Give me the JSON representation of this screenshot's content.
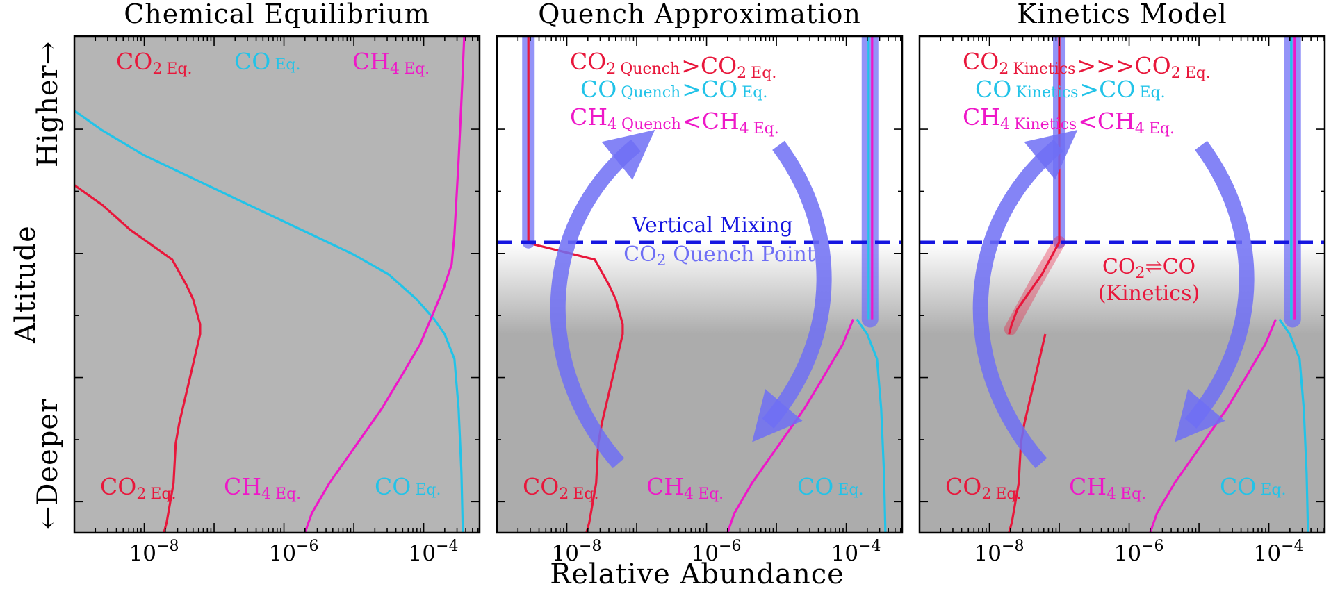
{
  "figure": {
    "xlabel": "Relative Abundance",
    "ylabel": "Altitude",
    "y_higher": "Higher→",
    "y_deeper": "←Deeper",
    "x_ticks": [
      {
        "exp": -8,
        "base": "10",
        "sup": "−8"
      },
      {
        "exp": -6,
        "base": "10",
        "sup": "−6"
      },
      {
        "exp": -4,
        "base": "10",
        "sup": "−4"
      }
    ],
    "xlim_log10": [
      -9.0,
      -3.2
    ]
  },
  "colors": {
    "co2": "#e8173b",
    "co": "#22c3e8",
    "ch4": "#ee18c8",
    "arrow": "#6f6ff5",
    "mixing_line": "#1515e0",
    "eq_background": "#b5b5b5",
    "deep_background": "#acacac"
  },
  "panels": [
    {
      "id": "equilibrium",
      "title": "Chemical Equilibrium",
      "top_labels": [
        {
          "species": "co2",
          "main": "CO",
          "sub2": "2",
          "tag": "Eq."
        },
        {
          "species": "co",
          "main": "CO",
          "sub2": "",
          "tag": "Eq."
        },
        {
          "species": "ch4",
          "main": "CH",
          "sub2": "4",
          "tag": "Eq."
        }
      ],
      "bottom_labels": [
        {
          "species": "co2",
          "main": "CO",
          "sub2": "2",
          "tag": "Eq."
        },
        {
          "species": "ch4",
          "main": "CH",
          "sub2": "4",
          "tag": "Eq."
        },
        {
          "species": "co",
          "main": "CO",
          "sub2": "",
          "tag": "Eq."
        }
      ]
    },
    {
      "id": "quench",
      "title": "Quench Approximation",
      "comparisons": [
        {
          "species": "co2",
          "main": "CO",
          "sub2": "2",
          "tag": "Quench",
          "op": ">",
          "rmain": "CO",
          "rsub2": "2",
          "rtag": "Eq."
        },
        {
          "species": "co",
          "main": "CO",
          "sub2": "",
          "tag": "Quench",
          "op": ">",
          "rmain": "CO",
          "rsub2": "",
          "rtag": "Eq."
        },
        {
          "species": "ch4",
          "main": "CH",
          "sub2": "4",
          "tag": "Quench",
          "op": "<",
          "rmain": "CH",
          "rsub2": "4",
          "rtag": "Eq."
        }
      ],
      "mixing_label": "Vertical Mixing",
      "quench_point_label_main": "CO",
      "quench_point_label_sub": "2",
      "quench_point_label_rest": " Quench Point",
      "bottom_labels": [
        {
          "species": "co2",
          "main": "CO",
          "sub2": "2",
          "tag": "Eq."
        },
        {
          "species": "ch4",
          "main": "CH",
          "sub2": "4",
          "tag": "Eq."
        },
        {
          "species": "co",
          "main": "CO",
          "sub2": "",
          "tag": "Eq."
        }
      ]
    },
    {
      "id": "kinetics",
      "title": "Kinetics Model",
      "comparisons": [
        {
          "species": "co2",
          "main": "CO",
          "sub2": "2",
          "tag": "Kinetics",
          "op": ">>>",
          "rmain": "CO",
          "rsub2": "2",
          "rtag": "Eq."
        },
        {
          "species": "co",
          "main": "CO",
          "sub2": "",
          "tag": "Kinetics",
          "op": ">",
          "rmain": "CO",
          "rsub2": "",
          "rtag": "Eq."
        },
        {
          "species": "ch4",
          "main": "CH",
          "sub2": "4",
          "tag": "Kinetics",
          "op": "<",
          "rmain": "CH",
          "rsub2": "4",
          "rtag": "Eq."
        }
      ],
      "kinetics_note_line1_a": "CO",
      "kinetics_note_line1_sub": "2",
      "kinetics_note_line1_b": "⇌CO",
      "kinetics_note_line2": "(Kinetics)",
      "bottom_labels": [
        {
          "species": "co2",
          "main": "CO",
          "sub2": "2",
          "tag": "Eq."
        },
        {
          "species": "ch4",
          "main": "CH",
          "sub2": "4",
          "tag": "Eq."
        },
        {
          "species": "co",
          "main": "CO",
          "sub2": "",
          "tag": "Eq."
        }
      ]
    }
  ],
  "chart_data": {
    "type": "line",
    "x_scale": "log",
    "xlabel": "Relative Abundance",
    "ylabel": "Altitude",
    "y_axis_note": "altitude, relative (0 = bottom, 1 = top); no numeric labels",
    "quench_altitude": 0.585,
    "equilibrium_series": [
      {
        "name": "CO2 Eq.",
        "species": "co2",
        "points": [
          [
            -9.0,
            0.7
          ],
          [
            -8.6,
            0.66
          ],
          [
            -8.2,
            0.61
          ],
          [
            -7.6,
            0.55
          ],
          [
            -7.4,
            0.5
          ],
          [
            -7.3,
            0.47
          ],
          [
            -7.2,
            0.42
          ],
          [
            -7.2,
            0.4
          ],
          [
            -7.35,
            0.31
          ],
          [
            -7.5,
            0.22
          ],
          [
            -7.55,
            0.18
          ],
          [
            -7.58,
            0.1
          ],
          [
            -7.68,
            0.02
          ],
          [
            -7.72,
            0.0
          ]
        ]
      },
      {
        "name": "CO Eq.",
        "species": "co",
        "points": [
          [
            -9.0,
            0.85
          ],
          [
            -8.6,
            0.81
          ],
          [
            -8.0,
            0.76
          ],
          [
            -7.4,
            0.72
          ],
          [
            -6.8,
            0.68
          ],
          [
            -6.2,
            0.64
          ],
          [
            -5.6,
            0.6
          ],
          [
            -5.0,
            0.56
          ],
          [
            -4.5,
            0.52
          ],
          [
            -4.1,
            0.47
          ],
          [
            -3.85,
            0.43
          ],
          [
            -3.7,
            0.4
          ],
          [
            -3.56,
            0.35
          ],
          [
            -3.5,
            0.25
          ],
          [
            -3.46,
            0.12
          ],
          [
            -3.44,
            0.0
          ]
        ]
      },
      {
        "name": "CH4 Eq.",
        "species": "ch4",
        "points": [
          [
            -5.7,
            0.0
          ],
          [
            -5.6,
            0.04
          ],
          [
            -5.35,
            0.1
          ],
          [
            -5.0,
            0.17
          ],
          [
            -4.6,
            0.25
          ],
          [
            -4.3,
            0.32
          ],
          [
            -4.05,
            0.38
          ],
          [
            -3.9,
            0.43
          ],
          [
            -3.72,
            0.49
          ],
          [
            -3.6,
            0.54
          ],
          [
            -3.56,
            0.6
          ],
          [
            -3.5,
            0.75
          ],
          [
            -3.45,
            0.9
          ],
          [
            -3.42,
            1.0
          ]
        ]
      }
    ],
    "quench_series": [
      {
        "name": "CO2 Quench",
        "species": "co2",
        "points": [
          [
            -9.2,
            1.0
          ],
          [
            -9.2,
            0.585
          ]
        ]
      },
      {
        "name": "CO Quench",
        "species": "co",
        "points": [
          [
            -3.66,
            1.0
          ],
          [
            -3.66,
            0.43
          ]
        ]
      },
      {
        "name": "CH4 Quench",
        "species": "ch4",
        "points": [
          [
            -3.66,
            1.0
          ],
          [
            -3.66,
            0.43
          ]
        ]
      }
    ],
    "kinetics_series": [
      {
        "name": "CO2 Kinetics",
        "species": "co2",
        "points": [
          [
            -7.0,
            1.0
          ],
          [
            -7.0,
            0.585
          ],
          [
            -7.25,
            0.52
          ],
          [
            -7.6,
            0.45
          ],
          [
            -7.68,
            0.42
          ],
          [
            -7.72,
            0.4
          ]
        ]
      },
      {
        "name": "CO Kinetics",
        "species": "co",
        "points": [
          [
            -3.66,
            1.0
          ],
          [
            -3.66,
            0.43
          ]
        ]
      },
      {
        "name": "CH4 Kinetics",
        "species": "ch4",
        "points": [
          [
            -3.66,
            1.0
          ],
          [
            -3.66,
            0.43
          ]
        ]
      }
    ]
  }
}
